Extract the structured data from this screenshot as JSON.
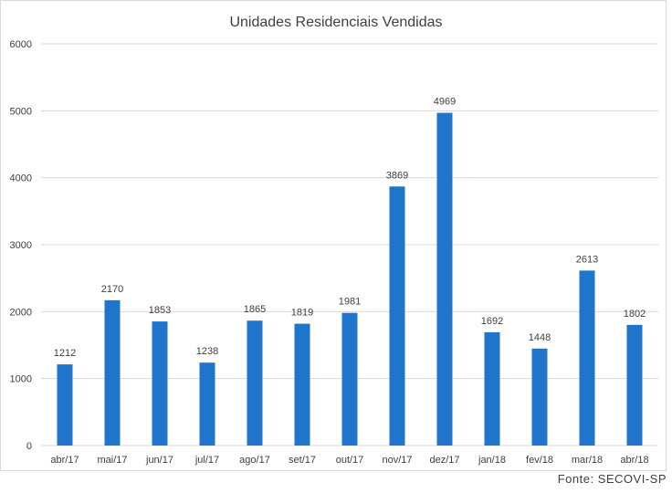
{
  "source": "Fonte: SECOVI-SP",
  "colors": {
    "bar": "#1f75cb",
    "grid": "#d9d9d9",
    "text": "#404040"
  },
  "chart_data": {
    "type": "bar",
    "title": "Unidades Residenciais Vendidas",
    "xlabel": "",
    "ylabel": "",
    "ylim": [
      0,
      6000
    ],
    "yticks": [
      0,
      1000,
      2000,
      3000,
      4000,
      5000,
      6000
    ],
    "grid": true,
    "categories": [
      "abr/17",
      "mai/17",
      "jun/17",
      "jul/17",
      "ago/17",
      "set/17",
      "out/17",
      "nov/17",
      "dez/17",
      "jan/18",
      "fev/18",
      "mar/18",
      "abr/18"
    ],
    "values": [
      1212,
      2170,
      1853,
      1238,
      1865,
      1819,
      1981,
      3869,
      4969,
      1692,
      1448,
      2613,
      1802
    ]
  }
}
